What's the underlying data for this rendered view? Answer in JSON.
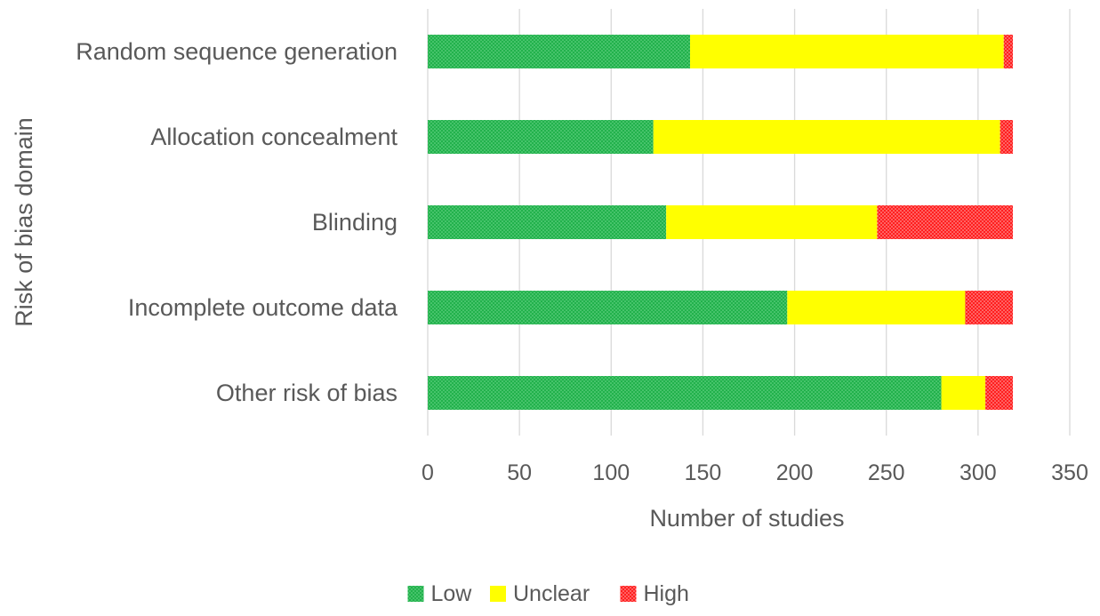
{
  "chart_data": {
    "type": "bar",
    "orientation": "horizontal",
    "stacked": true,
    "xlabel": "Number of studies",
    "ylabel": "Risk of bias domain",
    "xlim": [
      0,
      350
    ],
    "xticks": [
      0,
      50,
      100,
      150,
      200,
      250,
      300,
      350
    ],
    "grid": "vertical",
    "legend_position": "bottom",
    "categories": [
      "Random sequence generation",
      "Allocation concealment",
      "Blinding",
      "Incomplete outcome data",
      "Other risk of bias"
    ],
    "series": [
      {
        "name": "Low",
        "color": "#22b14c",
        "values": [
          143,
          123,
          130,
          196,
          280
        ]
      },
      {
        "name": "Unclear",
        "color": "#ffff00",
        "values": [
          171,
          189,
          115,
          97,
          24
        ]
      },
      {
        "name": "High",
        "color": "#ff1f1f",
        "values": [
          5,
          7,
          74,
          26,
          15
        ]
      }
    ]
  }
}
